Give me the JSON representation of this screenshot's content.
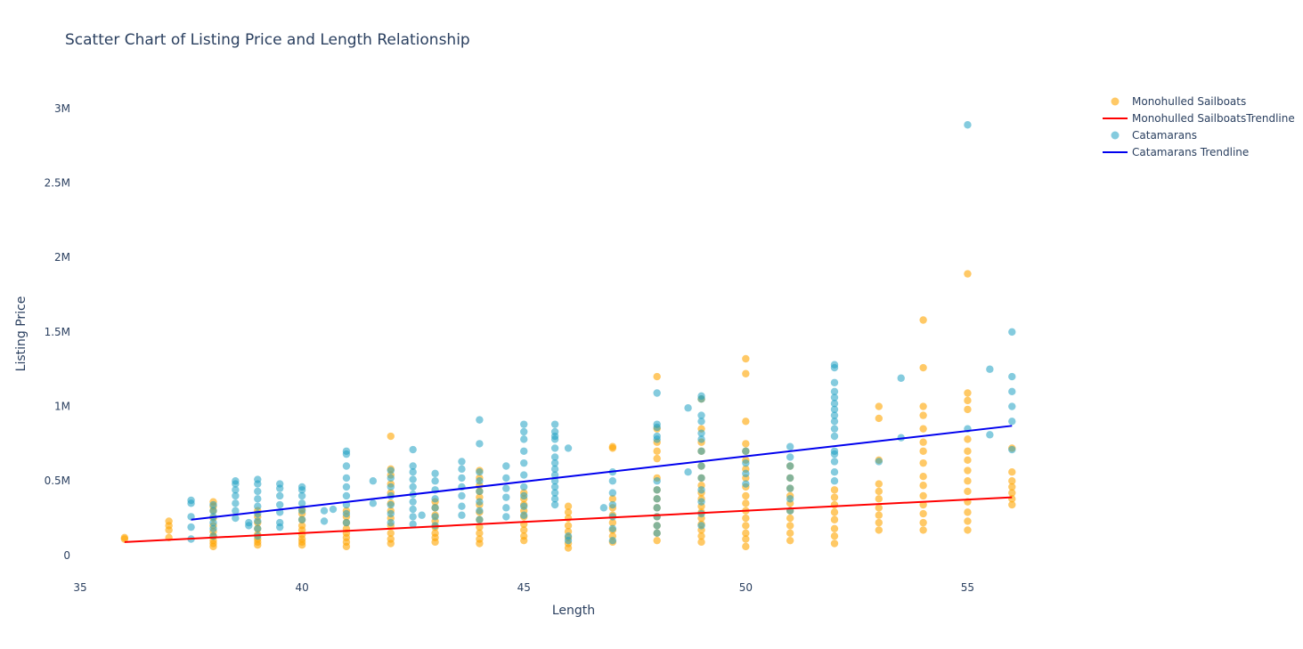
{
  "chart_data": {
    "type": "scatter",
    "title": "Scatter Chart of Listing Price and Length Relationship",
    "xlabel": "Length",
    "ylabel": "Listing Price",
    "xlim": [
      35,
      57.5
    ],
    "ylim": [
      -120000,
      3250000
    ],
    "x_ticks": [
      35,
      40,
      45,
      50,
      55
    ],
    "y_ticks": [
      {
        "value": 0,
        "label": "0"
      },
      {
        "value": 500000,
        "label": "0.5M"
      },
      {
        "value": 1000000,
        "label": "1M"
      },
      {
        "value": 1500000,
        "label": "1.5M"
      },
      {
        "value": 2000000,
        "label": "2M"
      },
      {
        "value": 2500000,
        "label": "2.5M"
      },
      {
        "value": 3000000,
        "label": "3M"
      }
    ],
    "legend_position": "top-right",
    "series": [
      {
        "name": "Monohulled Sailboats",
        "kind": "markers",
        "color": "#FFA500",
        "opacity": 0.6,
        "points": [
          {
            "len": 36,
            "prices": [
              110000,
              120000
            ]
          },
          {
            "len": 37,
            "prices": [
              120000,
              170000,
              200000,
              230000
            ]
          },
          {
            "len": 38,
            "prices": [
              60000,
              80000,
              100000,
              130000,
              160000,
              200000,
              250000,
              300000,
              330000,
              360000
            ]
          },
          {
            "len": 39,
            "prices": [
              70000,
              90000,
              110000,
              140000,
              180000,
              220000,
              260000,
              300000
            ]
          },
          {
            "len": 40,
            "prices": [
              70000,
              90000,
              110000,
              140000,
              170000,
              200000,
              240000,
              280000,
              310000
            ]
          },
          {
            "len": 41,
            "prices": [
              60000,
              90000,
              120000,
              150000,
              180000,
              220000,
              260000,
              300000
            ]
          },
          {
            "len": 42,
            "prices": [
              80000,
              110000,
              150000,
              200000,
              250000,
              300000,
              350000,
              420000,
              480000,
              540000,
              580000,
              800000
            ]
          },
          {
            "len": 43,
            "prices": [
              90000,
              120000,
              150000,
              190000,
              230000,
              270000,
              320000,
              360000
            ]
          },
          {
            "len": 44,
            "prices": [
              80000,
              110000,
              150000,
              190000,
              240000,
              290000,
              340000,
              390000,
              430000,
              470000,
              520000,
              570000
            ]
          },
          {
            "len": 45,
            "prices": [
              100000,
              130000,
              170000,
              210000,
              260000,
              300000,
              340000,
              380000,
              420000
            ]
          },
          {
            "len": 46,
            "prices": [
              50000,
              80000,
              120000,
              160000,
              200000,
              250000,
              290000,
              330000
            ]
          },
          {
            "len": 47,
            "prices": [
              90000,
              130000,
              170000,
              220000,
              270000,
              320000,
              380000,
              720000,
              730000
            ]
          },
          {
            "len": 48,
            "prices": [
              100000,
              150000,
              200000,
              260000,
              320000,
              380000,
              440000,
              520000,
              650000,
              700000,
              760000,
              850000,
              1200000
            ]
          },
          {
            "len": 49,
            "prices": [
              90000,
              130000,
              170000,
              210000,
              250000,
              290000,
              330000,
              380000,
              420000,
              470000,
              520000,
              600000,
              700000,
              760000,
              850000,
              1050000
            ]
          },
          {
            "len": 50,
            "prices": [
              60000,
              110000,
              150000,
              200000,
              250000,
              300000,
              350000,
              400000,
              460000,
              520000,
              580000,
              640000,
              700000,
              750000,
              900000,
              1220000,
              1320000
            ]
          },
          {
            "len": 51,
            "prices": [
              100000,
              150000,
              200000,
              250000,
              300000,
              350000,
              400000,
              450000,
              520000,
              600000
            ]
          },
          {
            "len": 52,
            "prices": [
              80000,
              130000,
              180000,
              240000,
              290000,
              340000,
              390000,
              440000
            ]
          },
          {
            "len": 53,
            "prices": [
              170000,
              220000,
              270000,
              320000,
              380000,
              430000,
              480000,
              640000,
              920000,
              1000000
            ]
          },
          {
            "len": 54,
            "prices": [
              170000,
              220000,
              280000,
              340000,
              400000,
              470000,
              530000,
              620000,
              700000,
              760000,
              850000,
              940000,
              1000000,
              1260000,
              1580000
            ]
          },
          {
            "len": 55,
            "prices": [
              170000,
              230000,
              290000,
              360000,
              430000,
              500000,
              570000,
              640000,
              700000,
              780000,
              980000,
              1040000,
              1090000,
              1890000
            ]
          },
          {
            "len": 56,
            "prices": [
              340000,
              380000,
              420000,
              460000,
              500000,
              560000,
              720000
            ]
          }
        ]
      },
      {
        "name": "Monohulled SailboatsTrendline",
        "kind": "line",
        "color": "#FF0000",
        "x": [
          36,
          56
        ],
        "y": [
          90000,
          390000
        ]
      },
      {
        "name": "Catamarans",
        "kind": "markers",
        "color": "#1FA0C2",
        "opacity": 0.55,
        "points": [
          {
            "len": 37.5,
            "prices": [
              110000,
              190000,
              260000,
              350000,
              370000
            ]
          },
          {
            "len": 38,
            "prices": [
              130000,
              180000,
              220000,
              260000,
              300000,
              340000
            ]
          },
          {
            "len": 38.5,
            "prices": [
              250000,
              300000,
              350000,
              400000,
              440000,
              480000,
              500000
            ]
          },
          {
            "len": 38.8,
            "prices": [
              200000,
              220000
            ]
          },
          {
            "len": 39,
            "prices": [
              130000,
              180000,
              230000,
              280000,
              330000,
              380000,
              430000,
              480000,
              510000
            ]
          },
          {
            "len": 39.5,
            "prices": [
              190000,
              220000,
              290000,
              340000,
              400000,
              450000,
              480000
            ]
          },
          {
            "len": 40,
            "prices": [
              240000,
              300000,
              350000,
              400000,
              440000,
              460000
            ]
          },
          {
            "len": 40.5,
            "prices": [
              230000,
              300000
            ]
          },
          {
            "len": 40.7,
            "prices": [
              310000
            ]
          },
          {
            "len": 41,
            "prices": [
              220000,
              280000,
              340000,
              400000,
              460000,
              520000,
              600000,
              680000,
              700000
            ]
          },
          {
            "len": 41.6,
            "prices": [
              350000,
              500000
            ]
          },
          {
            "len": 42,
            "prices": [
              220000,
              280000,
              340000,
              400000,
              460000,
              520000,
              570000
            ]
          },
          {
            "len": 42.5,
            "prices": [
              210000,
              260000,
              310000,
              360000,
              410000,
              460000,
              510000,
              560000,
              600000,
              710000
            ]
          },
          {
            "len": 42.7,
            "prices": [
              270000
            ]
          },
          {
            "len": 43,
            "prices": [
              200000,
              260000,
              320000,
              380000,
              440000,
              500000,
              550000
            ]
          },
          {
            "len": 43.6,
            "prices": [
              270000,
              330000,
              400000,
              460000,
              520000,
              580000,
              630000
            ]
          },
          {
            "len": 44,
            "prices": [
              240000,
              300000,
              360000,
              430000,
              500000,
              560000,
              750000,
              910000
            ]
          },
          {
            "len": 44.6,
            "prices": [
              260000,
              320000,
              390000,
              450000,
              520000,
              600000
            ]
          },
          {
            "len": 45,
            "prices": [
              270000,
              330000,
              400000,
              460000,
              540000,
              620000,
              700000,
              780000,
              830000,
              880000
            ]
          },
          {
            "len": 45.7,
            "prices": [
              340000,
              380000,
              420000,
              460000,
              500000,
              540000,
              580000,
              620000,
              660000,
              720000,
              780000,
              800000,
              830000,
              880000
            ]
          },
          {
            "len": 46,
            "prices": [
              100000,
              130000,
              720000
            ]
          },
          {
            "len": 46.8,
            "prices": [
              320000
            ]
          },
          {
            "len": 47,
            "prices": [
              100000,
              180000,
              260000,
              340000,
              420000,
              500000,
              560000
            ]
          },
          {
            "len": 48,
            "prices": [
              150000,
              200000,
              260000,
              320000,
              380000,
              440000,
              500000,
              780000,
              800000,
              860000,
              880000,
              1090000
            ]
          },
          {
            "len": 48.7,
            "prices": [
              560000,
              990000
            ]
          },
          {
            "len": 49,
            "prices": [
              200000,
              280000,
              360000,
              440000,
              520000,
              600000,
              700000,
              780000,
              820000,
              900000,
              940000,
              1050000,
              1070000
            ]
          },
          {
            "len": 50,
            "prices": [
              480000,
              550000,
              620000,
              700000
            ]
          },
          {
            "len": 51,
            "prices": [
              300000,
              380000,
              450000,
              520000,
              600000,
              660000,
              730000
            ]
          },
          {
            "len": 52,
            "prices": [
              500000,
              560000,
              630000,
              680000,
              700000,
              800000,
              850000,
              900000,
              940000,
              980000,
              1020000,
              1060000,
              1100000,
              1160000,
              1260000,
              1280000
            ]
          },
          {
            "len": 53,
            "prices": [
              630000
            ]
          },
          {
            "len": 53.5,
            "prices": [
              790000,
              1190000
            ]
          },
          {
            "len": 55,
            "prices": [
              850000,
              2890000
            ]
          },
          {
            "len": 55.5,
            "prices": [
              810000,
              1250000
            ]
          },
          {
            "len": 56,
            "prices": [
              710000,
              900000,
              1000000,
              1100000,
              1200000,
              1500000
            ]
          }
        ]
      },
      {
        "name": "Catamarans Trendline",
        "kind": "line",
        "color": "#0000EE",
        "x": [
          37.5,
          56
        ],
        "y": [
          240000,
          870000
        ]
      }
    ]
  }
}
